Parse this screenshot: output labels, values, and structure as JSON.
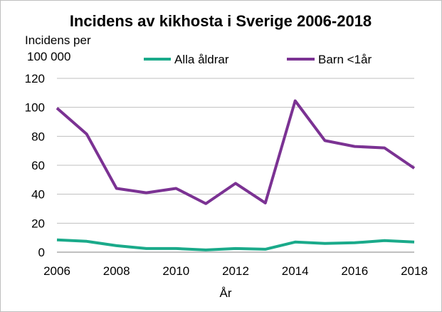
{
  "chart_data": {
    "type": "line",
    "title": "Incidens av kikhosta i Sverige 2006-2018",
    "ylabel_line1": "Incidens per",
    "ylabel_line2": "100 000",
    "xlabel": "År",
    "x": [
      2006,
      2007,
      2008,
      2009,
      2010,
      2011,
      2012,
      2013,
      2014,
      2015,
      2016,
      2017,
      2018
    ],
    "xticks": [
      "2006",
      "2008",
      "2010",
      "2012",
      "2014",
      "2016",
      "2018"
    ],
    "yticks": [
      "0",
      "20",
      "40",
      "60",
      "80",
      "100",
      "120"
    ],
    "xlim": [
      2006,
      2018
    ],
    "ylim": [
      0,
      120
    ],
    "grid": true,
    "legend_position": "top",
    "series": [
      {
        "name": "Alla åldrar",
        "color": "#1aaa8a",
        "values": [
          8.5,
          7.5,
          4.5,
          2.5,
          2.5,
          1.5,
          2.5,
          2.0,
          7.0,
          6.0,
          6.5,
          8.0,
          7.0
        ]
      },
      {
        "name": "Barn <1år",
        "color": "#7b3293",
        "values": [
          99.5,
          81.5,
          44.0,
          41.0,
          44.0,
          33.5,
          47.5,
          34.0,
          104.5,
          77.0,
          73.0,
          72.0,
          58.0
        ]
      }
    ]
  }
}
